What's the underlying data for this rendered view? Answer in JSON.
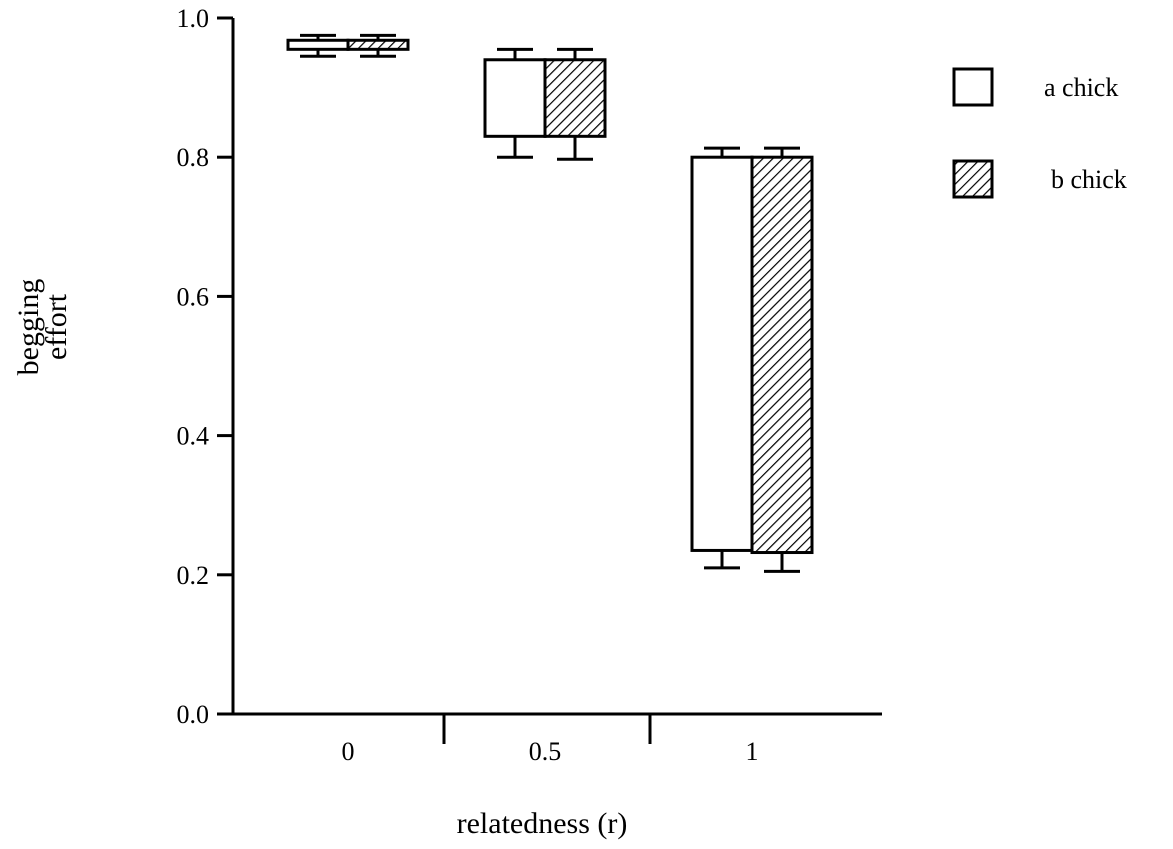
{
  "chart_data": {
    "type": "box",
    "title": "",
    "xlabel": "relatedness (r)",
    "ylabel": [
      "begging",
      "effort"
    ],
    "categories": [
      "0",
      "0.5",
      "1"
    ],
    "ylim": [
      0,
      1.0
    ],
    "yticks": [
      "0.0",
      "0.2",
      "0.4",
      "0.6",
      "0.8",
      "1.0"
    ],
    "grid": false,
    "legend_position": "top-right",
    "series": [
      {
        "name": "a chick",
        "pattern": "open",
        "boxes": [
          {
            "low": 0.955,
            "high": 0.968,
            "whisker_low": 0.945,
            "whisker_high": 0.975
          },
          {
            "low": 0.83,
            "high": 0.94,
            "whisker_low": 0.8,
            "whisker_high": 0.955
          },
          {
            "low": 0.235,
            "high": 0.8,
            "whisker_low": 0.21,
            "whisker_high": 0.813
          }
        ]
      },
      {
        "name": "b chick",
        "pattern": "hatched",
        "boxes": [
          {
            "low": 0.955,
            "high": 0.968,
            "whisker_low": 0.945,
            "whisker_high": 0.975
          },
          {
            "low": 0.83,
            "high": 0.94,
            "whisker_low": 0.797,
            "whisker_high": 0.955
          },
          {
            "low": 0.232,
            "high": 0.8,
            "whisker_low": 0.205,
            "whisker_high": 0.813
          }
        ]
      }
    ]
  }
}
